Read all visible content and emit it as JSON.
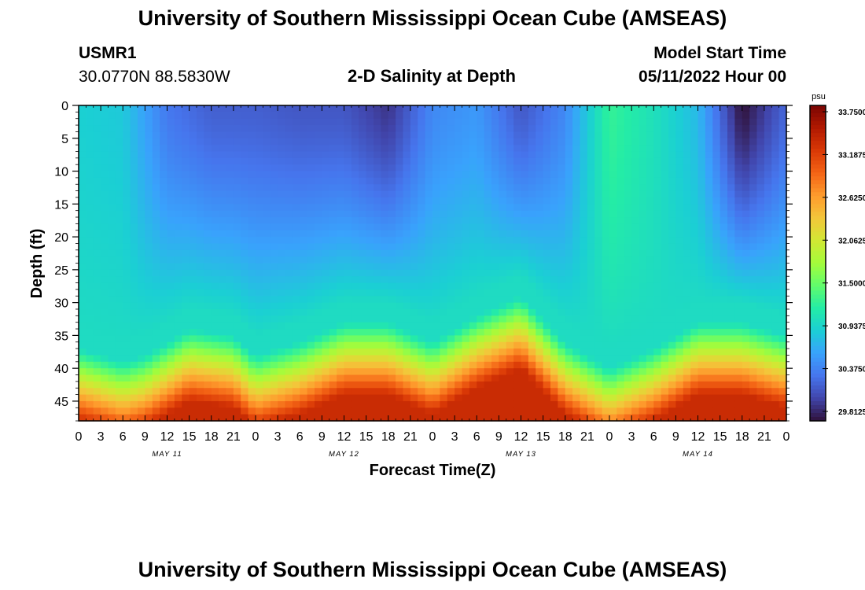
{
  "page": {
    "title": "University of Southern Mississippi Ocean Cube (AMSEAS)",
    "station_id": "USMR1",
    "coordinates": "30.0770N  88.5830W",
    "plot_title": "2-D Salinity at Depth",
    "model_start_label": "Model Start Time",
    "model_start_value": "05/11/2022 Hour 00",
    "footer_title": "University of Southern Mississippi Ocean Cube (AMSEAS)"
  },
  "chart_data": {
    "type": "heatmap",
    "title": "2-D Salinity at Depth",
    "xlabel": "Forecast Time(Z)",
    "ylabel": "Depth (ft)",
    "x_hours_range": [
      0,
      96
    ],
    "x_tick_labels": [
      "0",
      "3",
      "6",
      "9",
      "12",
      "15",
      "18",
      "21",
      "0",
      "3",
      "6",
      "9",
      "12",
      "15",
      "18",
      "21",
      "0",
      "3",
      "6",
      "9",
      "12",
      "15",
      "18",
      "21",
      "0",
      "3",
      "6",
      "9",
      "12",
      "15",
      "18",
      "21",
      "0"
    ],
    "day_labels": [
      "MAY 11",
      "MAY 12",
      "MAY 13",
      "MAY 14"
    ],
    "ylim": [
      0,
      48
    ],
    "y_ticks": [
      0,
      5,
      10,
      15,
      20,
      25,
      30,
      35,
      40,
      45
    ],
    "y_inverted": true,
    "colorbar": {
      "unit": "psu",
      "min": 29.8125,
      "max": 33.75,
      "tick_values": [
        33.75,
        33.1875,
        32.625,
        32.0625,
        31.5,
        30.9375,
        30.375,
        29.8125
      ],
      "tick_labels": [
        "33.7500",
        "33.1875",
        "32.6250",
        "32.0625",
        "31.5000",
        "30.9375",
        "30.3750",
        "29.8125"
      ]
    },
    "halocline_depth_ft_by_hour": {
      "hours": [
        0,
        6,
        9,
        15,
        21,
        24,
        30,
        36,
        42,
        48,
        54,
        60,
        66,
        72,
        78,
        84,
        90,
        96
      ],
      "depth": [
        37,
        39,
        38,
        34,
        35,
        38,
        36,
        33,
        33,
        36,
        32,
        29,
        36,
        40,
        37,
        33,
        33,
        35
      ]
    },
    "surface_salinity_psu_by_hour": {
      "hours": [
        0,
        6,
        12,
        18,
        24,
        30,
        36,
        42,
        48,
        54,
        60,
        66,
        72,
        78,
        84,
        90,
        96
      ],
      "values": [
        30.95,
        30.9,
        30.4,
        30.25,
        30.25,
        30.2,
        30.2,
        30.0,
        30.5,
        30.6,
        30.2,
        30.5,
        31.3,
        31.1,
        30.8,
        29.8,
        30.3
      ]
    },
    "colors": {
      "scale": [
        "#30123b",
        "#4145ab",
        "#4675ed",
        "#39a2fc",
        "#1bcfd4",
        "#24eca6",
        "#61fc6c",
        "#a4fc3b",
        "#d1e834",
        "#f3c63a",
        "#fe9b2d",
        "#f36315",
        "#d93806",
        "#b11901",
        "#7a0403"
      ]
    }
  }
}
